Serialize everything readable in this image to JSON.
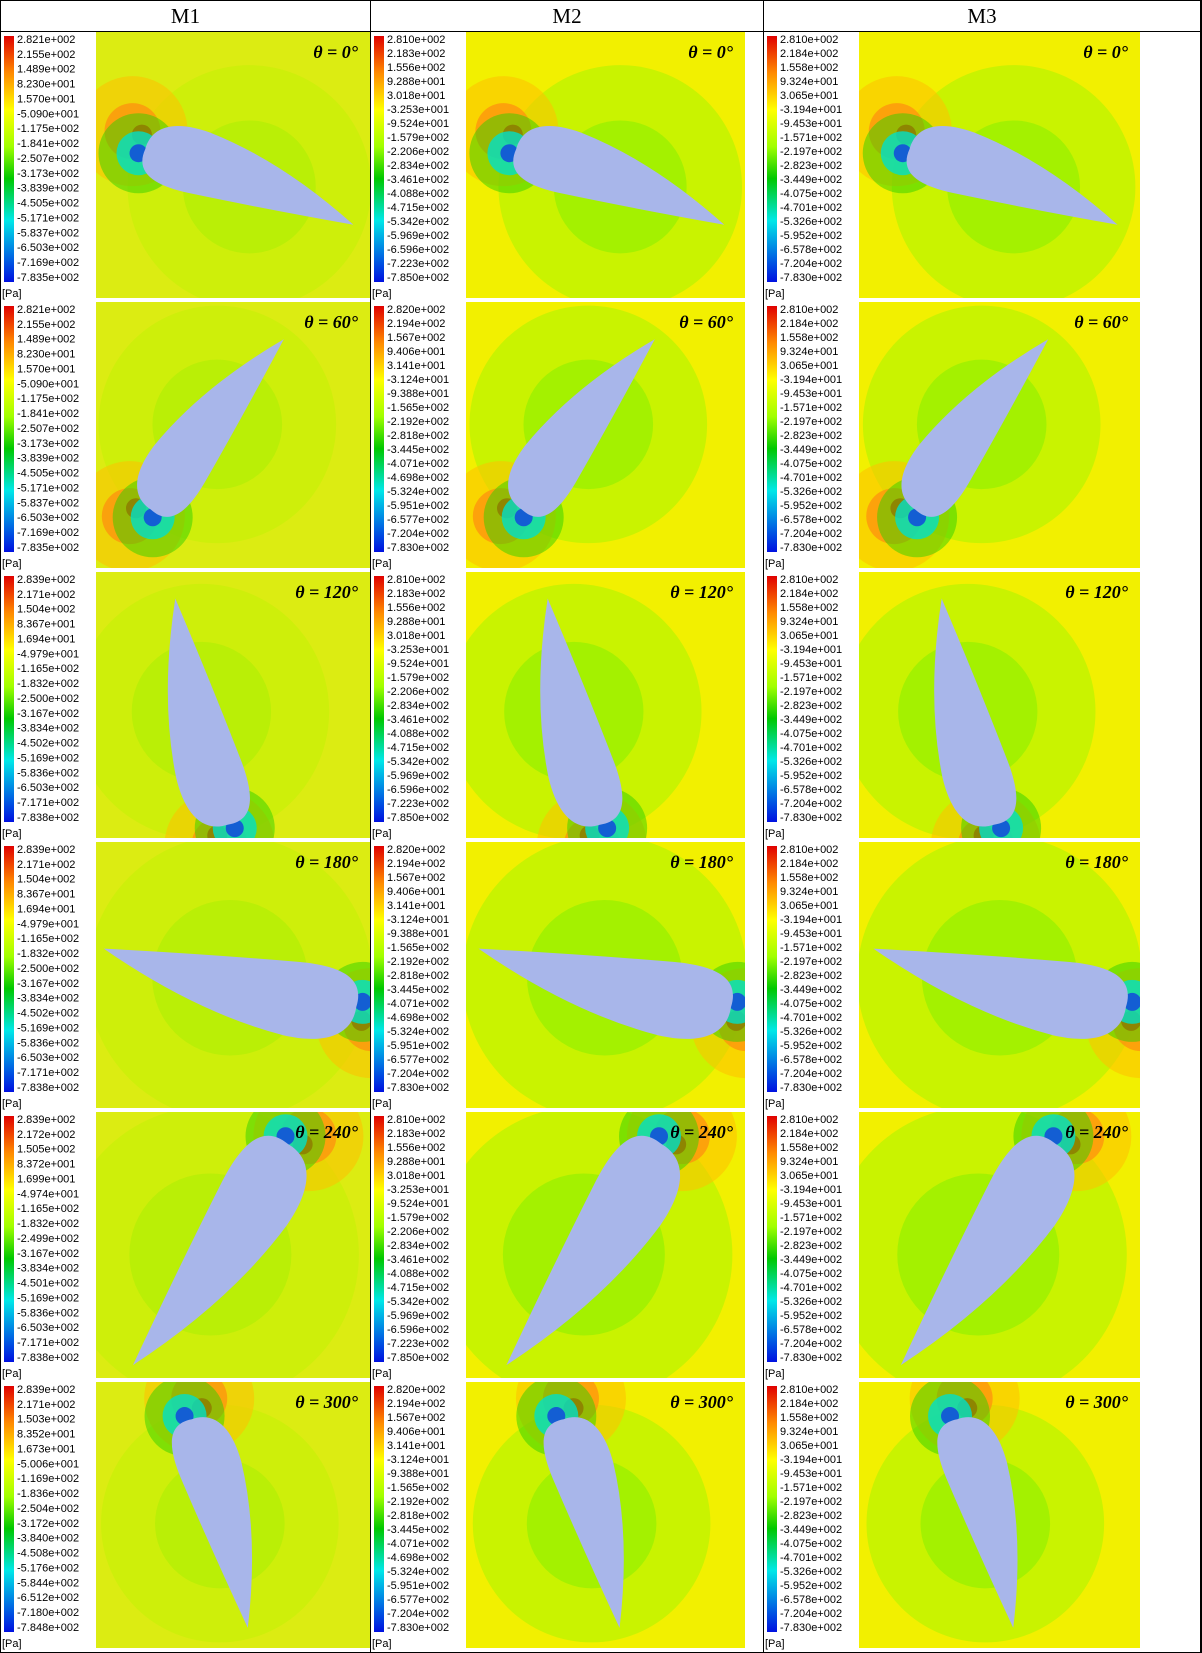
{
  "unit": "[Pa]",
  "columns": [
    {
      "title": "M1",
      "panels": [
        {
          "angle": "θ = 0°",
          "legend": [
            "2.821e+002",
            "2.155e+002",
            "1.489e+002",
            "8.230e+001",
            "1.570e+001",
            "-5.090e+001",
            "-1.175e+002",
            "-1.841e+002",
            "-2.507e+002",
            "-3.173e+002",
            "-3.839e+002",
            "-4.505e+002",
            "-5.171e+002",
            "-5.837e+002",
            "-6.503e+002",
            "-7.169e+002",
            "-7.835e+002"
          ]
        },
        {
          "angle": "θ = 60°",
          "legend": [
            "2.821e+002",
            "2.155e+002",
            "1.489e+002",
            "8.230e+001",
            "1.570e+001",
            "-5.090e+001",
            "-1.175e+002",
            "-1.841e+002",
            "-2.507e+002",
            "-3.173e+002",
            "-3.839e+002",
            "-4.505e+002",
            "-5.171e+002",
            "-5.837e+002",
            "-6.503e+002",
            "-7.169e+002",
            "-7.835e+002"
          ]
        },
        {
          "angle": "θ = 120°",
          "legend": [
            "2.839e+002",
            "2.171e+002",
            "1.504e+002",
            "8.367e+001",
            "1.694e+001",
            "-4.979e+001",
            "-1.165e+002",
            "-1.832e+002",
            "-2.500e+002",
            "-3.167e+002",
            "-3.834e+002",
            "-4.502e+002",
            "-5.169e+002",
            "-5.836e+002",
            "-6.503e+002",
            "-7.171e+002",
            "-7.838e+002"
          ]
        },
        {
          "angle": "θ = 180°",
          "legend": [
            "2.839e+002",
            "2.171e+002",
            "1.504e+002",
            "8.367e+001",
            "1.694e+001",
            "-4.979e+001",
            "-1.165e+002",
            "-1.832e+002",
            "-2.500e+002",
            "-3.167e+002",
            "-3.834e+002",
            "-4.502e+002",
            "-5.169e+002",
            "-5.836e+002",
            "-6.503e+002",
            "-7.171e+002",
            "-7.838e+002"
          ]
        },
        {
          "angle": "θ = 240°",
          "legend": [
            "2.839e+002",
            "2.172e+002",
            "1.505e+002",
            "8.372e+001",
            "1.699e+001",
            "-4.974e+001",
            "-1.165e+002",
            "-1.832e+002",
            "-2.499e+002",
            "-3.167e+002",
            "-3.834e+002",
            "-4.501e+002",
            "-5.169e+002",
            "-5.836e+002",
            "-6.503e+002",
            "-7.171e+002",
            "-7.838e+002"
          ]
        },
        {
          "angle": "θ = 300°",
          "legend": [
            "2.839e+002",
            "2.171e+002",
            "1.503e+002",
            "8.352e+001",
            "1.673e+001",
            "-5.006e+001",
            "-1.169e+002",
            "-1.836e+002",
            "-2.504e+002",
            "-3.172e+002",
            "-3.840e+002",
            "-4.508e+002",
            "-5.176e+002",
            "-5.844e+002",
            "-6.512e+002",
            "-7.180e+002",
            "-7.848e+002"
          ]
        }
      ]
    },
    {
      "title": "M2",
      "panels": [
        {
          "angle": "θ = 0°",
          "legend": [
            "2.810e+002",
            "2.183e+002",
            "1.556e+002",
            "9.288e+001",
            "3.018e+001",
            "-3.253e+001",
            "-9.524e+001",
            "-1.579e+002",
            "-2.206e+002",
            "-2.834e+002",
            "-3.461e+002",
            "-4.088e+002",
            "-4.715e+002",
            "-5.342e+002",
            "-5.969e+002",
            "-6.596e+002",
            "-7.223e+002",
            "-7.850e+002"
          ]
        },
        {
          "angle": "θ = 60°",
          "legend": [
            "2.820e+002",
            "2.194e+002",
            "1.567e+002",
            "9.406e+001",
            "3.141e+001",
            "-3.124e+001",
            "-9.388e+001",
            "-1.565e+002",
            "-2.192e+002",
            "-2.818e+002",
            "-3.445e+002",
            "-4.071e+002",
            "-4.698e+002",
            "-5.324e+002",
            "-5.951e+002",
            "-6.577e+002",
            "-7.204e+002",
            "-7.830e+002"
          ]
        },
        {
          "angle": "θ = 120°",
          "legend": [
            "2.810e+002",
            "2.183e+002",
            "1.556e+002",
            "9.288e+001",
            "3.018e+001",
            "-3.253e+001",
            "-9.524e+001",
            "-1.579e+002",
            "-2.206e+002",
            "-2.834e+002",
            "-3.461e+002",
            "-4.088e+002",
            "-4.715e+002",
            "-5.342e+002",
            "-5.969e+002",
            "-6.596e+002",
            "-7.223e+002",
            "-7.850e+002"
          ]
        },
        {
          "angle": "θ = 180°",
          "legend": [
            "2.820e+002",
            "2.194e+002",
            "1.567e+002",
            "9.406e+001",
            "3.141e+001",
            "-3.124e+001",
            "-9.388e+001",
            "-1.565e+002",
            "-2.192e+002",
            "-2.818e+002",
            "-3.445e+002",
            "-4.071e+002",
            "-4.698e+002",
            "-5.324e+002",
            "-5.951e+002",
            "-6.577e+002",
            "-7.204e+002",
            "-7.830e+002"
          ]
        },
        {
          "angle": "θ = 240°",
          "legend": [
            "2.810e+002",
            "2.183e+002",
            "1.556e+002",
            "9.288e+001",
            "3.018e+001",
            "-3.253e+001",
            "-9.524e+001",
            "-1.579e+002",
            "-2.206e+002",
            "-2.834e+002",
            "-3.461e+002",
            "-4.088e+002",
            "-4.715e+002",
            "-5.342e+002",
            "-5.969e+002",
            "-6.596e+002",
            "-7.223e+002",
            "-7.850e+002"
          ]
        },
        {
          "angle": "θ = 300°",
          "legend": [
            "2.820e+002",
            "2.194e+002",
            "1.567e+002",
            "9.406e+001",
            "3.141e+001",
            "-3.124e+001",
            "-9.388e+001",
            "-1.565e+002",
            "-2.192e+002",
            "-2.818e+002",
            "-3.445e+002",
            "-4.071e+002",
            "-4.698e+002",
            "-5.324e+002",
            "-5.951e+002",
            "-6.577e+002",
            "-7.204e+002",
            "-7.830e+002"
          ]
        }
      ]
    },
    {
      "title": "M3",
      "panels": [
        {
          "angle": "θ = 0°",
          "legend": [
            "2.810e+002",
            "2.184e+002",
            "1.558e+002",
            "9.324e+001",
            "3.065e+001",
            "-3.194e+001",
            "-9.453e+001",
            "-1.571e+002",
            "-2.197e+002",
            "-2.823e+002",
            "-3.449e+002",
            "-4.075e+002",
            "-4.701e+002",
            "-5.326e+002",
            "-5.952e+002",
            "-6.578e+002",
            "-7.204e+002",
            "-7.830e+002"
          ]
        },
        {
          "angle": "θ = 60°",
          "legend": [
            "2.810e+002",
            "2.184e+002",
            "1.558e+002",
            "9.324e+001",
            "3.065e+001",
            "-3.194e+001",
            "-9.453e+001",
            "-1.571e+002",
            "-2.197e+002",
            "-2.823e+002",
            "-3.449e+002",
            "-4.075e+002",
            "-4.701e+002",
            "-5.326e+002",
            "-5.952e+002",
            "-6.578e+002",
            "-7.204e+002",
            "-7.830e+002"
          ]
        },
        {
          "angle": "θ = 120°",
          "legend": [
            "2.810e+002",
            "2.184e+002",
            "1.558e+002",
            "9.324e+001",
            "3.065e+001",
            "-3.194e+001",
            "-9.453e+001",
            "-1.571e+002",
            "-2.197e+002",
            "-2.823e+002",
            "-3.449e+002",
            "-4.075e+002",
            "-4.701e+002",
            "-5.326e+002",
            "-5.952e+002",
            "-6.578e+002",
            "-7.204e+002",
            "-7.830e+002"
          ]
        },
        {
          "angle": "θ = 180°",
          "legend": [
            "2.810e+002",
            "2.184e+002",
            "1.558e+002",
            "9.324e+001",
            "3.065e+001",
            "-3.194e+001",
            "-9.453e+001",
            "-1.571e+002",
            "-2.197e+002",
            "-2.823e+002",
            "-3.449e+002",
            "-4.075e+002",
            "-4.701e+002",
            "-5.326e+002",
            "-5.952e+002",
            "-6.578e+002",
            "-7.204e+002",
            "-7.830e+002"
          ]
        },
        {
          "angle": "θ = 240°",
          "legend": [
            "2.810e+002",
            "2.184e+002",
            "1.558e+002",
            "9.324e+001",
            "3.065e+001",
            "-3.194e+001",
            "-9.453e+001",
            "-1.571e+002",
            "-2.197e+002",
            "-2.823e+002",
            "-3.449e+002",
            "-4.075e+002",
            "-4.701e+002",
            "-5.326e+002",
            "-5.952e+002",
            "-6.578e+002",
            "-7.204e+002",
            "-7.830e+002"
          ]
        },
        {
          "angle": "θ = 300°",
          "legend": [
            "2.810e+002",
            "2.184e+002",
            "1.558e+002",
            "9.324e+001",
            "3.065e+001",
            "-3.194e+001",
            "-9.453e+001",
            "-1.571e+002",
            "-2.197e+002",
            "-2.823e+002",
            "-3.449e+002",
            "-4.075e+002",
            "-4.701e+002",
            "-5.326e+002",
            "-5.952e+002",
            "-6.578e+002",
            "-7.204e+002",
            "-7.830e+002"
          ]
        }
      ]
    }
  ]
}
